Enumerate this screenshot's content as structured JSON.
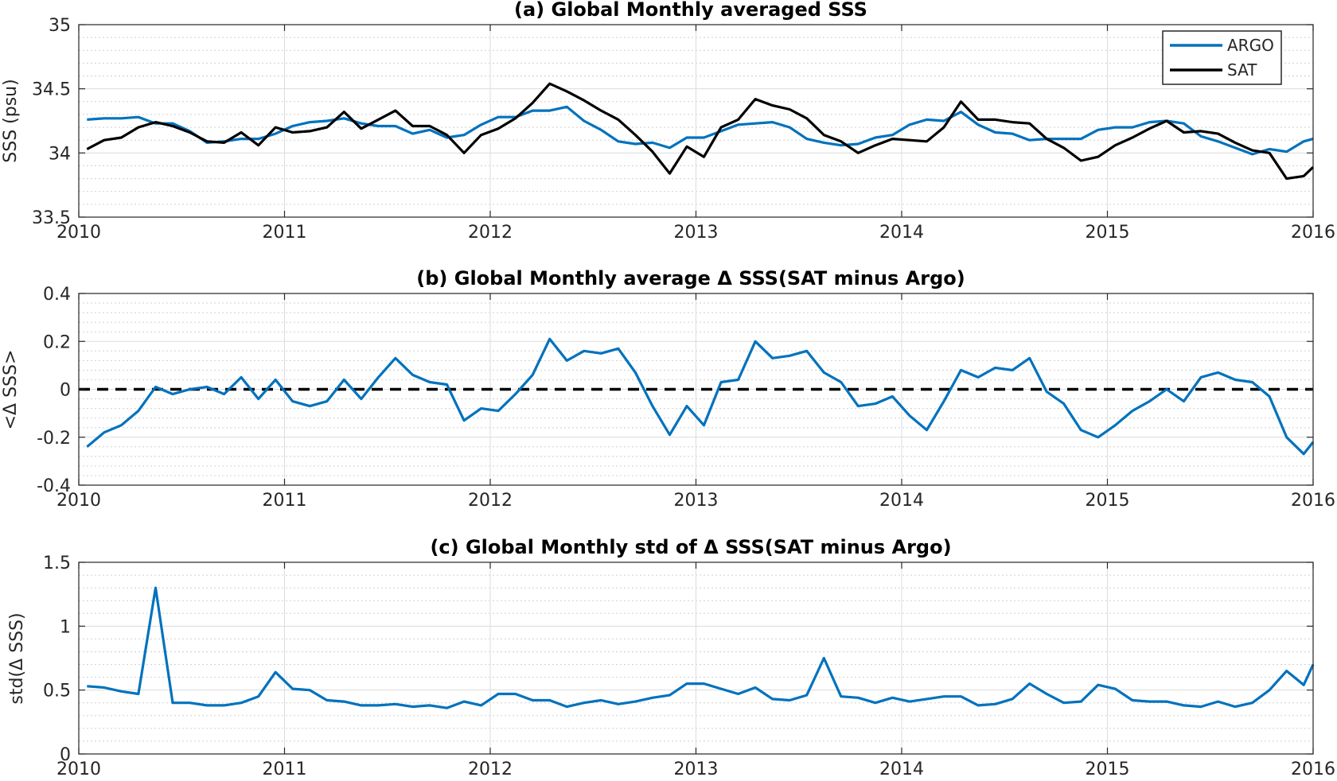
{
  "chart_data": [
    {
      "type": "line",
      "title": "(a) Global Monthly averaged SSS",
      "xlabel": "",
      "ylabel": "SSS (psu)",
      "xlim": [
        2010,
        2016
      ],
      "ylim": [
        33.5,
        35
      ],
      "x_ticks": [
        "2010",
        "2011",
        "2012",
        "2013",
        "2014",
        "2015",
        "2016"
      ],
      "y_ticks": [
        "33.5",
        "34",
        "34.5",
        "35"
      ],
      "y_tick_values": [
        33.5,
        34,
        34.5,
        35
      ],
      "grid": true,
      "legend": "top-right",
      "series": [
        {
          "name": "ARGO",
          "color": "#0072BD",
          "x_start": 2010.04,
          "x_step": 0.0833,
          "values": [
            34.26,
            34.27,
            34.27,
            34.28,
            34.23,
            34.23,
            34.17,
            34.08,
            34.09,
            34.11,
            34.11,
            34.15,
            34.21,
            34.24,
            34.25,
            34.27,
            34.23,
            34.21,
            34.21,
            34.15,
            34.18,
            34.12,
            34.14,
            34.22,
            34.28,
            34.28,
            34.33,
            34.33,
            34.36,
            34.25,
            34.18,
            34.09,
            34.07,
            34.08,
            34.04,
            34.12,
            34.12,
            34.17,
            34.22,
            34.23,
            34.24,
            34.2,
            34.11,
            34.08,
            34.06,
            34.07,
            34.12,
            34.14,
            34.22,
            34.26,
            34.25,
            34.32,
            34.22,
            34.16,
            34.15,
            34.1,
            34.11,
            34.11,
            34.11,
            34.18,
            34.2,
            34.2,
            34.24,
            34.25,
            34.23,
            34.13,
            34.09,
            34.04,
            33.99,
            34.03,
            34.01,
            34.09,
            34.11
          ]
        },
        {
          "name": "SAT",
          "color": "#000000",
          "x_start": 2010.04,
          "x_step": 0.0833,
          "values": [
            34.03,
            34.1,
            34.12,
            34.2,
            34.24,
            34.21,
            34.16,
            34.09,
            34.08,
            34.16,
            34.06,
            34.2,
            34.16,
            34.17,
            34.2,
            34.32,
            34.19,
            34.26,
            34.33,
            34.21,
            34.21,
            34.14,
            34.0,
            34.14,
            34.19,
            34.27,
            34.39,
            34.54,
            34.48,
            34.41,
            34.33,
            34.26,
            34.14,
            34.01,
            33.84,
            34.05,
            33.97,
            34.2,
            34.26,
            34.42,
            34.37,
            34.34,
            34.27,
            34.14,
            34.09,
            34.0,
            34.06,
            34.11,
            34.1,
            34.09,
            34.2,
            34.4,
            34.26,
            34.26,
            34.24,
            34.23,
            34.11,
            34.04,
            33.94,
            33.97,
            34.06,
            34.12,
            34.19,
            34.25,
            34.16,
            34.17,
            34.15,
            34.08,
            34.02,
            34.0,
            33.8,
            33.82,
            33.89
          ]
        }
      ]
    },
    {
      "type": "line",
      "title": "(b) Global Monthly average Δ SSS(SAT minus Argo)",
      "xlabel": "",
      "ylabel": "<Δ SSS>",
      "xlim": [
        2010,
        2016
      ],
      "ylim": [
        -0.4,
        0.4
      ],
      "x_ticks": [
        "2010",
        "2011",
        "2012",
        "2013",
        "2014",
        "2015",
        "2016"
      ],
      "y_ticks": [
        "-0.4",
        "-0.2",
        "0",
        "0.2",
        "0.4"
      ],
      "y_tick_values": [
        -0.4,
        -0.2,
        0,
        0.2,
        0.4
      ],
      "grid": true,
      "reference_line": {
        "y": 0,
        "style": "dashed",
        "color": "#000000"
      },
      "series": [
        {
          "name": "",
          "color": "#0072BD",
          "x_start": 2010.04,
          "x_step": 0.0833,
          "values": [
            -0.24,
            -0.18,
            -0.15,
            -0.09,
            0.01,
            -0.02,
            0.0,
            0.01,
            -0.02,
            0.05,
            -0.04,
            0.04,
            -0.05,
            -0.07,
            -0.05,
            0.04,
            -0.04,
            0.05,
            0.13,
            0.06,
            0.03,
            0.02,
            -0.13,
            -0.08,
            -0.09,
            -0.02,
            0.06,
            0.21,
            0.12,
            0.16,
            0.15,
            0.17,
            0.07,
            -0.07,
            -0.19,
            -0.07,
            -0.15,
            0.03,
            0.04,
            0.2,
            0.13,
            0.14,
            0.16,
            0.07,
            0.03,
            -0.07,
            -0.06,
            -0.03,
            -0.11,
            -0.17,
            -0.05,
            0.08,
            0.05,
            0.09,
            0.08,
            0.13,
            -0.01,
            -0.06,
            -0.17,
            -0.2,
            -0.15,
            -0.09,
            -0.05,
            0.0,
            -0.05,
            0.05,
            0.07,
            0.04,
            0.03,
            -0.03,
            -0.2,
            -0.27,
            -0.22
          ]
        }
      ]
    },
    {
      "type": "line",
      "title": "(c) Global Monthly std of Δ SSS(SAT minus Argo)",
      "xlabel": "",
      "ylabel": "std(Δ SSS)",
      "xlim": [
        2010,
        2016
      ],
      "ylim": [
        0,
        1.5
      ],
      "x_ticks": [
        "2010",
        "2011",
        "2012",
        "2013",
        "2014",
        "2015",
        "2016"
      ],
      "y_ticks": [
        "0",
        "0.5",
        "1",
        "1.5"
      ],
      "y_tick_values": [
        0,
        0.5,
        1,
        1.5
      ],
      "grid": true,
      "series": [
        {
          "name": "",
          "color": "#0072BD",
          "x_start": 2010.04,
          "x_step": 0.0833,
          "values": [
            0.53,
            0.52,
            0.49,
            0.47,
            1.3,
            0.4,
            0.4,
            0.38,
            0.38,
            0.4,
            0.45,
            0.64,
            0.51,
            0.5,
            0.42,
            0.41,
            0.38,
            0.38,
            0.39,
            0.37,
            0.38,
            0.36,
            0.41,
            0.38,
            0.47,
            0.47,
            0.42,
            0.42,
            0.37,
            0.4,
            0.42,
            0.39,
            0.41,
            0.44,
            0.46,
            0.55,
            0.55,
            0.51,
            0.47,
            0.52,
            0.43,
            0.42,
            0.46,
            0.75,
            0.45,
            0.44,
            0.4,
            0.44,
            0.41,
            0.43,
            0.45,
            0.45,
            0.38,
            0.39,
            0.43,
            0.55,
            0.47,
            0.4,
            0.41,
            0.54,
            0.51,
            0.42,
            0.41,
            0.41,
            0.38,
            0.37,
            0.41,
            0.37,
            0.4,
            0.5,
            0.65,
            0.54,
            0.7
          ]
        }
      ]
    }
  ]
}
